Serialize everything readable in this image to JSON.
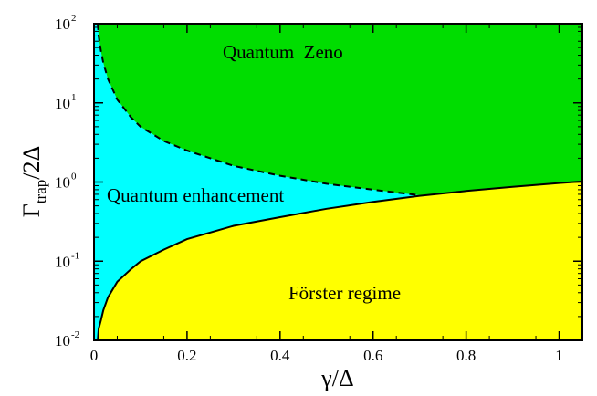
{
  "chart_data": {
    "type": "area",
    "x_axis": {
      "label_symbol": "γ",
      "label_rest": "/Δ",
      "range": [
        0,
        1.05
      ],
      "ticks": [
        {
          "value": 0,
          "label": "0"
        },
        {
          "value": 0.2,
          "label": "0.2"
        },
        {
          "value": 0.4,
          "label": "0.4"
        },
        {
          "value": 0.6,
          "label": "0.6"
        },
        {
          "value": 0.8,
          "label": "0.8"
        },
        {
          "value": 1.0,
          "label": "1"
        }
      ]
    },
    "y_axis": {
      "label_main": "Γ",
      "label_sub": "trap",
      "label_rest": "/2Δ",
      "scale": "log",
      "range": [
        0.01,
        100
      ],
      "ticks": [
        {
          "value": 0.01,
          "base": "10",
          "exp": "-2"
        },
        {
          "value": 0.1,
          "base": "10",
          "exp": "-1"
        },
        {
          "value": 1,
          "base": "10",
          "exp": "0"
        },
        {
          "value": 10,
          "base": "10",
          "exp": "1"
        },
        {
          "value": 100,
          "base": "10",
          "exp": "2"
        }
      ]
    },
    "regions": [
      {
        "label": "Quantum  Zeno",
        "color": "#00dd00"
      },
      {
        "label": "Quantum enhancement",
        "color": "#00ffff"
      },
      {
        "label": "Förster regime",
        "color": "#ffff00"
      }
    ],
    "series": [
      {
        "style": "solid",
        "x": [
          0.008,
          0.01,
          0.015,
          0.02,
          0.03,
          0.05,
          0.08,
          0.1,
          0.15,
          0.2,
          0.3,
          0.4,
          0.5,
          0.6,
          0.7,
          0.8,
          0.9,
          1.0,
          1.05
        ],
        "y": [
          0.01,
          0.014,
          0.018,
          0.024,
          0.035,
          0.055,
          0.08,
          0.1,
          0.14,
          0.19,
          0.28,
          0.36,
          0.46,
          0.56,
          0.67,
          0.77,
          0.87,
          0.97,
          1.02
        ]
      },
      {
        "style": "dashed",
        "x": [
          0.008,
          0.01,
          0.015,
          0.02,
          0.03,
          0.05,
          0.08,
          0.1,
          0.15,
          0.2,
          0.3,
          0.4,
          0.5,
          0.6,
          0.7
        ],
        "y": [
          100,
          70,
          45,
          32,
          20,
          11,
          6.5,
          5.0,
          3.3,
          2.5,
          1.6,
          1.2,
          0.95,
          0.8,
          0.68
        ]
      }
    ],
    "grid": false,
    "legend": "none"
  },
  "colors": {
    "zeno": "#00dd00",
    "enhancement": "#00ffff",
    "forster": "#ffff00"
  }
}
